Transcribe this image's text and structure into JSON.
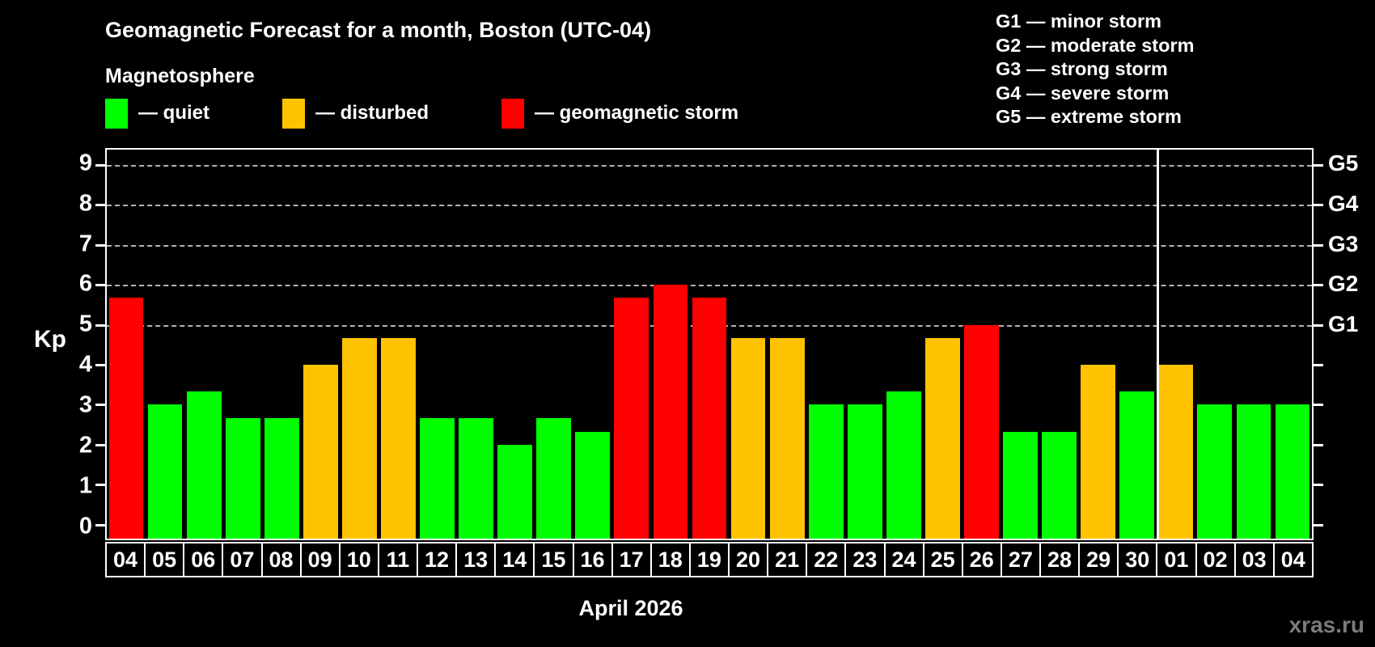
{
  "title": "Geomagnetic Forecast for a month, Boston (UTC-04)",
  "subtitle": "Magnetosphere",
  "legend": [
    {
      "label": "— quiet",
      "status": "quiet",
      "color": "#00ff00"
    },
    {
      "label": "— disturbed",
      "status": "disturbed",
      "color": "#ffc200"
    },
    {
      "label": "— geomagnetic storm",
      "status": "storm",
      "color": "#ff0000"
    }
  ],
  "g_legend": [
    "G1 — minor storm",
    "G2 — moderate storm",
    "G3 — strong storm",
    "G4 — severe storm",
    "G5 — extreme storm"
  ],
  "y_axis": {
    "label": "Kp",
    "ticks": [
      "0",
      "1",
      "2",
      "3",
      "4",
      "5",
      "6",
      "7",
      "8",
      "9"
    ]
  },
  "right_axis": {
    "labels": [
      {
        "text": "G5",
        "kp": 9
      },
      {
        "text": "G4",
        "kp": 8
      },
      {
        "text": "G3",
        "kp": 7
      },
      {
        "text": "G2",
        "kp": 6
      },
      {
        "text": "G1",
        "kp": 5
      }
    ]
  },
  "x_axis_label": "April 2026",
  "watermark": "xras.ru",
  "chart_data": {
    "type": "bar",
    "title": "Geomagnetic Forecast for a month, Boston (UTC-04)",
    "xlabel": "April 2026",
    "ylabel": "Kp",
    "ylim": [
      0,
      9
    ],
    "grid": "dashed horizontal at Kp 5-9 only",
    "gridlines_at_kp": [
      5,
      6,
      7,
      8,
      9
    ],
    "g_scale_mapping": {
      "G1": 5,
      "G2": 6,
      "G3": 7,
      "G4": 8,
      "G5": 9
    },
    "categories": [
      "04",
      "05",
      "06",
      "07",
      "08",
      "09",
      "10",
      "11",
      "12",
      "13",
      "14",
      "15",
      "16",
      "17",
      "18",
      "19",
      "20",
      "21",
      "22",
      "23",
      "24",
      "25",
      "26",
      "27",
      "28",
      "29",
      "30",
      "01",
      "02",
      "03",
      "04"
    ],
    "values": [
      5.67,
      3,
      3.33,
      2.67,
      2.67,
      4,
      4.67,
      4.67,
      2.67,
      2.67,
      2,
      2.67,
      2.33,
      5.67,
      6,
      5.67,
      4.67,
      4.67,
      3,
      3,
      3.33,
      4.67,
      5,
      2.33,
      2.33,
      4,
      3.33,
      4,
      3,
      3,
      3
    ],
    "status": [
      "storm",
      "quiet",
      "quiet",
      "quiet",
      "quiet",
      "disturbed",
      "disturbed",
      "disturbed",
      "quiet",
      "quiet",
      "quiet",
      "quiet",
      "quiet",
      "storm",
      "storm",
      "storm",
      "disturbed",
      "disturbed",
      "quiet",
      "quiet",
      "quiet",
      "disturbed",
      "storm",
      "quiet",
      "quiet",
      "disturbed",
      "quiet",
      "disturbed",
      "quiet",
      "quiet",
      "quiet"
    ],
    "colors": {
      "quiet": "#00ff00",
      "disturbed": "#ffc200",
      "storm": "#ff0000"
    },
    "month_separator_after_index": 26
  }
}
